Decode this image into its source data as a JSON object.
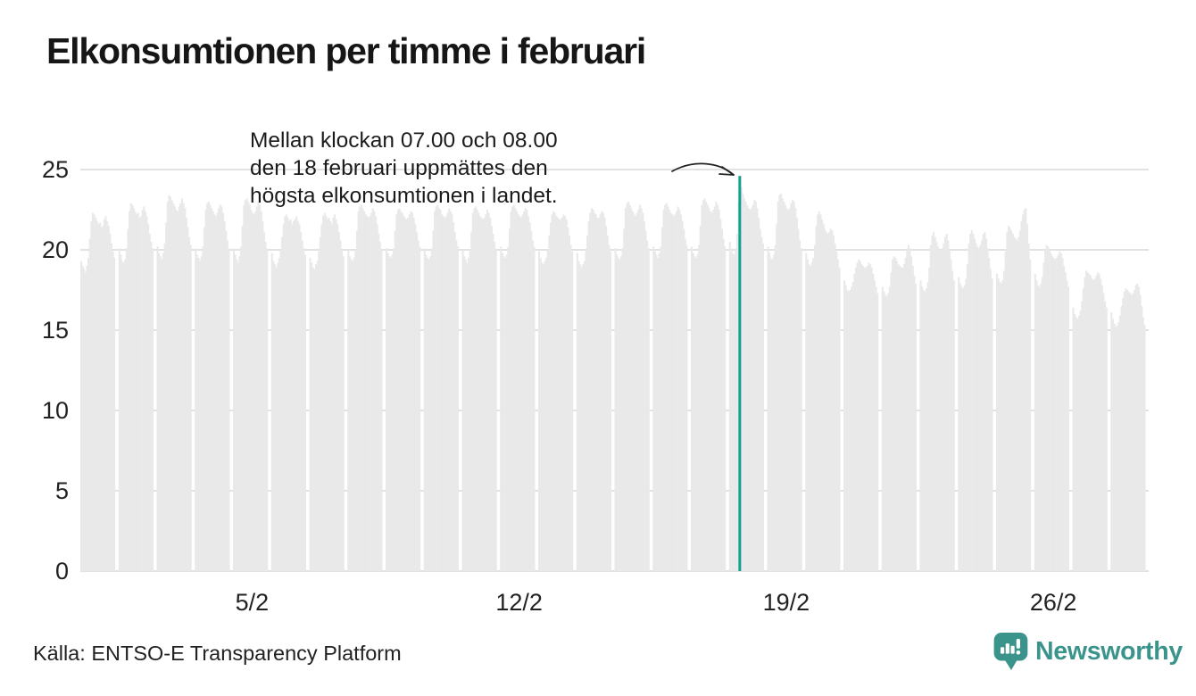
{
  "title": "Elkonsumtionen per timme i februari",
  "annotation": {
    "line1": "Mellan klockan 07.00 och 08.00",
    "line2": "den 18 februari uppmättes den",
    "line3": "högsta elkonsumtionen i landet."
  },
  "source": "Källa: ENTSO-E Transparency Platform",
  "brand": {
    "name": "Newsworthy",
    "color": "#3b948c"
  },
  "colors": {
    "bar": "#e9e9e9",
    "grid": "#d9d9d9",
    "highlight": "#169e92",
    "text": "#222222",
    "title": "#161616"
  },
  "chart_data": {
    "type": "bar",
    "title": "Elkonsumtionen per timme i februari",
    "xlabel": "",
    "ylabel": "",
    "ylim": [
      0,
      25
    ],
    "yticks": [
      0,
      5,
      10,
      15,
      20,
      25
    ],
    "xticks": [
      {
        "day": 5,
        "label": "5/2"
      },
      {
        "day": 12,
        "label": "12/2"
      },
      {
        "day": 19,
        "label": "19/2"
      },
      {
        "day": 26,
        "label": "26/2"
      }
    ],
    "grid": true,
    "legend": false,
    "highlight": {
      "day": 18,
      "hour_index": 7,
      "from": "07.00",
      "to": "08.00",
      "value": 24.6
    },
    "days": [
      {
        "day": 1,
        "values": [
          19.3,
          19.0,
          18.8,
          18.6,
          19.0,
          19.5,
          20.7,
          21.8,
          22.3,
          22.2,
          22.0,
          21.8,
          21.6,
          21.7,
          21.4,
          21.5,
          21.9,
          22.1,
          21.8,
          21.5,
          21.0,
          20.4,
          19.9,
          19.5
        ]
      },
      {
        "day": 2,
        "values": [
          20.1,
          19.7,
          19.3,
          19.2,
          19.4,
          20.1,
          21.3,
          22.4,
          22.9,
          22.8,
          22.6,
          22.4,
          22.2,
          22.3,
          22.0,
          22.1,
          22.5,
          22.7,
          22.4,
          22.1,
          21.6,
          21.0,
          20.5,
          20.1
        ]
      },
      {
        "day": 3,
        "values": [
          20.2,
          19.8,
          19.6,
          19.4,
          19.8,
          20.4,
          21.7,
          23.0,
          23.4,
          23.3,
          23.1,
          22.9,
          22.7,
          22.5,
          22.4,
          22.7,
          22.9,
          23.2,
          22.9,
          22.6,
          22.0,
          21.4,
          20.8,
          20.3
        ]
      },
      {
        "day": 4,
        "values": [
          20.1,
          19.7,
          19.5,
          19.3,
          19.6,
          20.2,
          21.4,
          22.5,
          22.9,
          23.0,
          22.8,
          22.6,
          22.4,
          22.2,
          22.1,
          22.3,
          22.6,
          22.8,
          22.7,
          22.3,
          21.8,
          21.2,
          20.6,
          20.1
        ]
      },
      {
        "day": 5,
        "values": [
          20.1,
          19.7,
          19.4,
          19.2,
          19.6,
          20.2,
          21.5,
          22.8,
          23.1,
          23.2,
          23.0,
          22.8,
          22.5,
          22.3,
          22.2,
          22.4,
          22.7,
          23.0,
          22.8,
          22.4,
          21.8,
          21.1,
          20.5,
          20.0
        ]
      },
      {
        "day": 6,
        "values": [
          19.8,
          19.3,
          19.1,
          18.9,
          19.2,
          19.5,
          20.0,
          20.8,
          21.6,
          22.1,
          22.2,
          22.0,
          21.8,
          21.9,
          21.6,
          21.8,
          21.9,
          22.1,
          21.8,
          21.6,
          21.1,
          20.6,
          20.1,
          19.7
        ]
      },
      {
        "day": 7,
        "values": [
          19.5,
          19.2,
          18.9,
          18.8,
          19.1,
          19.3,
          19.9,
          20.8,
          21.6,
          22.1,
          22.3,
          22.1,
          21.9,
          22.0,
          21.8,
          21.6,
          22.0,
          22.2,
          21.9,
          21.6,
          21.1,
          20.6,
          20.0,
          19.6
        ]
      },
      {
        "day": 8,
        "values": [
          20.0,
          19.6,
          19.4,
          19.3,
          19.5,
          20.0,
          21.2,
          22.4,
          22.7,
          22.8,
          22.6,
          22.4,
          22.2,
          22.1,
          22.0,
          22.1,
          22.3,
          22.6,
          22.4,
          22.1,
          21.6,
          21.0,
          20.5,
          20.0
        ]
      },
      {
        "day": 9,
        "values": [
          20.1,
          19.8,
          19.6,
          19.5,
          19.7,
          20.1,
          21.2,
          22.2,
          22.5,
          22.6,
          22.4,
          22.3,
          22.1,
          22.0,
          21.9,
          22.0,
          22.2,
          22.4,
          22.3,
          22.0,
          21.6,
          21.1,
          20.6,
          20.2
        ]
      },
      {
        "day": 10,
        "values": [
          20.1,
          19.7,
          19.5,
          19.4,
          19.6,
          20.1,
          21.2,
          22.4,
          22.7,
          22.8,
          22.6,
          22.5,
          22.2,
          22.1,
          22.0,
          22.1,
          22.3,
          22.6,
          22.4,
          22.2,
          21.7,
          21.1,
          20.6,
          20.2
        ]
      },
      {
        "day": 11,
        "values": [
          20.0,
          19.6,
          19.4,
          19.2,
          19.5,
          20.0,
          21.1,
          22.3,
          22.6,
          22.7,
          22.5,
          22.3,
          22.1,
          22.0,
          21.9,
          22.0,
          22.2,
          22.5,
          22.3,
          22.0,
          21.5,
          21.0,
          20.5,
          20.0
        ]
      },
      {
        "day": 12,
        "values": [
          20.2,
          19.8,
          19.6,
          19.5,
          19.7,
          20.2,
          21.3,
          22.4,
          22.7,
          22.8,
          22.6,
          22.4,
          22.2,
          22.1,
          22.0,
          22.2,
          22.4,
          22.6,
          22.5,
          22.1,
          21.7,
          21.2,
          20.6,
          20.2
        ]
      },
      {
        "day": 13,
        "values": [
          19.9,
          19.5,
          19.2,
          19.1,
          19.3,
          19.5,
          20.0,
          20.9,
          21.7,
          22.2,
          22.4,
          22.3,
          22.1,
          22.0,
          21.9,
          21.9,
          22.0,
          22.2,
          22.1,
          21.9,
          21.4,
          20.9,
          20.3,
          19.9
        ]
      },
      {
        "day": 14,
        "values": [
          19.8,
          19.3,
          19.1,
          18.9,
          19.1,
          19.3,
          19.9,
          20.9,
          21.8,
          22.3,
          22.6,
          22.5,
          22.3,
          22.2,
          22.0,
          22.0,
          22.2,
          22.4,
          22.3,
          22.0,
          21.5,
          20.9,
          20.3,
          19.9
        ]
      },
      {
        "day": 15,
        "values": [
          20.1,
          19.7,
          19.5,
          19.4,
          19.6,
          20.1,
          21.3,
          22.6,
          22.9,
          23.0,
          22.8,
          22.6,
          22.4,
          22.2,
          22.1,
          22.3,
          22.5,
          22.8,
          22.6,
          22.3,
          21.8,
          21.2,
          20.6,
          20.1
        ]
      },
      {
        "day": 16,
        "values": [
          20.2,
          19.9,
          19.7,
          19.5,
          19.8,
          20.2,
          21.4,
          22.5,
          22.8,
          22.9,
          22.7,
          22.5,
          22.3,
          22.2,
          22.1,
          22.2,
          22.4,
          22.7,
          22.5,
          22.2,
          21.8,
          21.3,
          20.7,
          20.3
        ]
      },
      {
        "day": 17,
        "values": [
          20.2,
          19.8,
          19.6,
          19.5,
          19.7,
          20.3,
          21.5,
          22.8,
          23.1,
          23.2,
          23.0,
          22.8,
          22.6,
          22.4,
          22.3,
          22.5,
          22.7,
          23.0,
          22.8,
          22.5,
          21.9,
          21.3,
          20.7,
          20.2
        ]
      },
      {
        "day": 18,
        "values": [
          20.5,
          20.1,
          19.8,
          19.7,
          20.0,
          21.0,
          23.0,
          24.6,
          23.9,
          23.5,
          23.2,
          23.0,
          22.8,
          22.6,
          22.5,
          22.6,
          22.8,
          23.1,
          23.0,
          22.6,
          22.0,
          21.3,
          20.8,
          20.4
        ]
      },
      {
        "day": 19,
        "values": [
          20.2,
          19.8,
          19.5,
          19.4,
          19.7,
          20.3,
          21.6,
          23.0,
          23.4,
          23.5,
          23.2,
          23.0,
          22.8,
          22.6,
          22.5,
          22.6,
          22.9,
          23.1,
          23.0,
          22.6,
          22.0,
          21.3,
          20.6,
          20.1
        ]
      },
      {
        "day": 20,
        "values": [
          19.8,
          19.4,
          19.1,
          19.0,
          19.2,
          19.5,
          20.3,
          21.5,
          22.2,
          22.4,
          22.2,
          21.9,
          21.6,
          21.3,
          21.1,
          21.0,
          21.1,
          21.3,
          21.2,
          20.9,
          20.4,
          19.9,
          19.4,
          18.9
        ]
      },
      {
        "day": 21,
        "values": [
          18.1,
          17.8,
          17.5,
          17.4,
          17.5,
          17.7,
          18.0,
          18.5,
          18.9,
          19.2,
          19.4,
          19.3,
          19.1,
          19.0,
          18.9,
          18.9,
          19.0,
          19.2,
          19.1,
          18.9,
          18.5,
          18.1,
          17.7,
          17.3
        ]
      },
      {
        "day": 22,
        "values": [
          17.7,
          17.4,
          17.2,
          17.1,
          17.3,
          17.7,
          18.6,
          19.4,
          19.6,
          19.5,
          19.3,
          19.1,
          19.0,
          18.9,
          18.9,
          19.1,
          19.5,
          20.0,
          20.3,
          20.1,
          19.6,
          19.0,
          18.4,
          17.9
        ]
      },
      {
        "day": 23,
        "values": [
          18.1,
          17.7,
          17.5,
          17.4,
          17.6,
          18.0,
          18.9,
          20.3,
          20.9,
          21.1,
          20.8,
          20.5,
          20.2,
          20.0,
          19.9,
          20.1,
          20.4,
          20.8,
          21.0,
          20.6,
          20.0,
          19.4,
          18.7,
          18.1
        ]
      },
      {
        "day": 24,
        "values": [
          18.3,
          17.9,
          17.7,
          17.6,
          17.8,
          18.2,
          19.1,
          20.4,
          21.0,
          21.2,
          21.0,
          20.7,
          20.4,
          20.2,
          20.1,
          20.3,
          20.6,
          21.0,
          21.1,
          20.7,
          20.1,
          19.5,
          18.8,
          18.2
        ]
      },
      {
        "day": 25,
        "values": [
          18.5,
          18.2,
          18.0,
          17.9,
          18.1,
          18.7,
          19.9,
          21.1,
          21.5,
          21.4,
          21.2,
          21.0,
          20.8,
          20.7,
          20.6,
          20.8,
          21.2,
          21.8,
          22.2,
          22.5,
          22.6,
          21.6,
          20.4,
          19.4
        ]
      },
      {
        "day": 26,
        "values": [
          18.5,
          18.1,
          17.8,
          17.7,
          17.9,
          18.3,
          19.2,
          20.0,
          20.3,
          20.2,
          20.0,
          19.8,
          19.6,
          19.5,
          19.4,
          19.5,
          19.7,
          19.9,
          19.8,
          19.5,
          19.0,
          18.6,
          18.1,
          17.7
        ]
      },
      {
        "day": 27,
        "values": [
          16.4,
          16.0,
          15.8,
          15.7,
          15.9,
          16.2,
          16.8,
          17.6,
          18.3,
          18.7,
          18.6,
          18.5,
          18.4,
          18.2,
          18.1,
          18.2,
          18.4,
          18.6,
          18.5,
          18.2,
          17.8,
          17.3,
          16.8,
          16.4
        ]
      },
      {
        "day": 28,
        "values": [
          16.1,
          15.7,
          15.4,
          15.2,
          15.3,
          15.5,
          15.9,
          16.5,
          17.0,
          17.4,
          17.6,
          17.5,
          17.4,
          17.3,
          17.2,
          17.3,
          17.5,
          17.8,
          17.9,
          17.7,
          17.2,
          16.5,
          15.8,
          15.3
        ]
      }
    ]
  }
}
